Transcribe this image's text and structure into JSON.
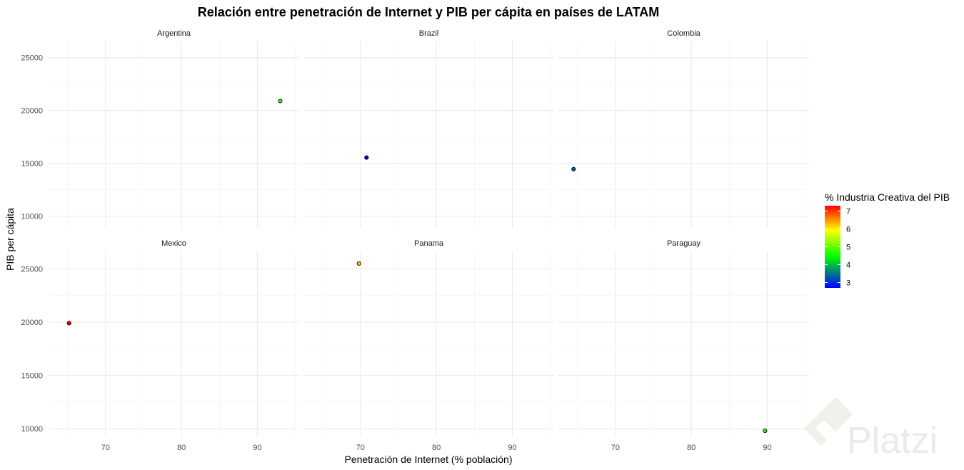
{
  "chart_data": {
    "type": "scatter",
    "title": "Relación entre penetración de Internet y PIB per cápita en países de LATAM",
    "xlabel": "Penetración de Internet (% población)",
    "ylabel": "PIB per cápita",
    "xlim": [
      62.5,
      95.5
    ],
    "x_ticks": [
      70,
      80,
      90
    ],
    "y_ticks": [
      10000,
      15000,
      20000,
      25000
    ],
    "panels_rows": [
      {
        "ylim": [
          8900,
          26600
        ]
      },
      {
        "ylim": [
          9200,
          26700
        ]
      }
    ],
    "legend": {
      "title": "% Industria Creativa del PIB",
      "ticks": [
        3,
        4,
        5,
        6,
        7
      ],
      "min": 2.7,
      "max": 7.3,
      "colors": [
        "#0000ff",
        "#00ff00",
        "#ffff00",
        "#ff0000"
      ],
      "placement": "right"
    },
    "facets": [
      {
        "name": "Argentina",
        "x": 93,
        "y": 20900,
        "value": 4.6
      },
      {
        "name": "Brazil",
        "x": 70.8,
        "y": 15550,
        "value": 2.7
      },
      {
        "name": "Colombia",
        "x": 64.5,
        "y": 14450,
        "value": 3.3
      },
      {
        "name": "Mexico",
        "x": 65.2,
        "y": 19900,
        "value": 7.3
      },
      {
        "name": "Panama",
        "x": 69.8,
        "y": 25500,
        "value": 6.1
      },
      {
        "name": "Paraguay",
        "x": 89.7,
        "y": 9800,
        "value": 4.5
      }
    ]
  },
  "watermark": {
    "text": "Platzi"
  }
}
